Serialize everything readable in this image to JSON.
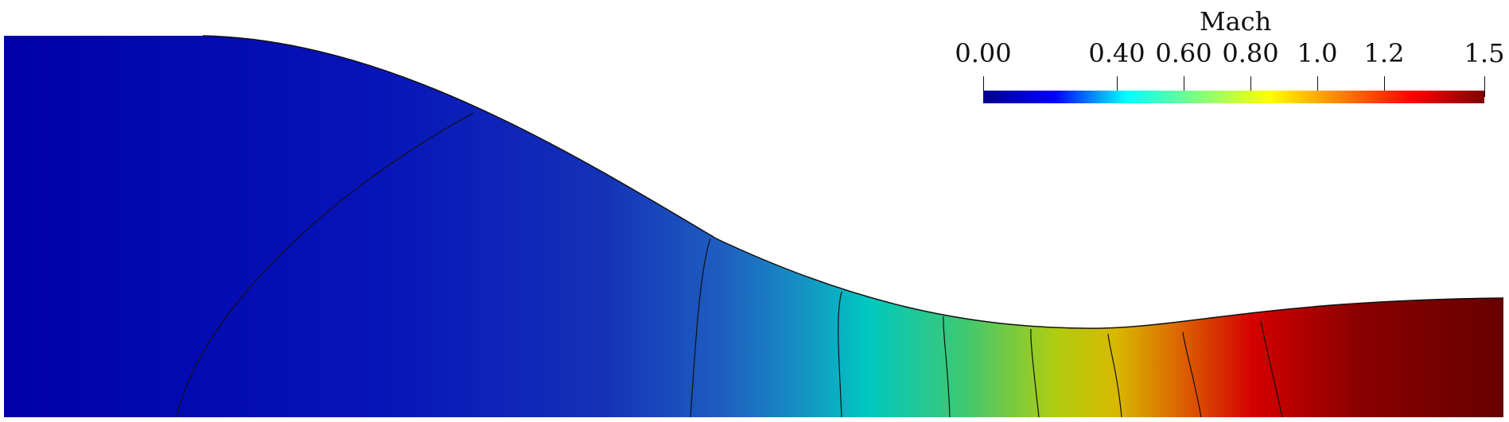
{
  "legend": {
    "title": "Mach",
    "range": [
      0.0,
      1.5
    ],
    "ticks": [
      {
        "value": 0.0,
        "label": "0.00"
      },
      {
        "value": 0.4,
        "label": "0.40"
      },
      {
        "value": 0.6,
        "label": "0.60"
      },
      {
        "value": 0.8,
        "label": "0.80"
      },
      {
        "value": 1.0,
        "label": "1.0"
      },
      {
        "value": 1.2,
        "label": "1.2"
      },
      {
        "value": 1.5,
        "label": "1.5"
      }
    ],
    "colormap": [
      "#00008f",
      "#0000ff",
      "#00ffff",
      "#7fff7f",
      "#ffff00",
      "#ff8000",
      "#ff0000",
      "#7f0000"
    ]
  }
}
